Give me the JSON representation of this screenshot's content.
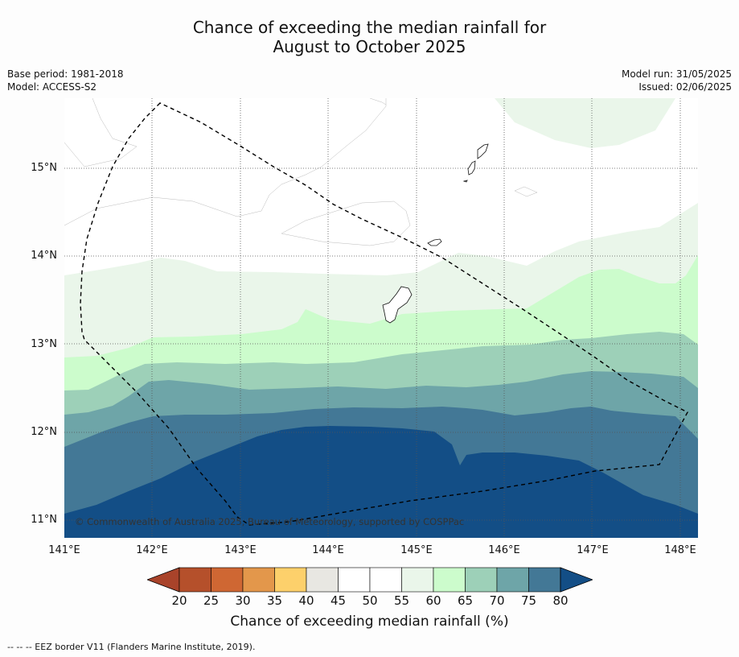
{
  "title_line1": "Chance of exceeding the median rainfall for",
  "title_line2": "August to October 2025",
  "base_period": "Base period: 1981-2018",
  "model": "Model: ACCESS-S2",
  "model_run": "Model run: 31/05/2025",
  "issued": "Issued: 02/06/2025",
  "x_ticks": [
    "141°E",
    "142°E",
    "143°E",
    "144°E",
    "145°E",
    "146°E",
    "147°E",
    "148°E"
  ],
  "y_ticks": [
    "15°N",
    "14°N",
    "13°N",
    "12°N",
    "11°N"
  ],
  "copyright": "© Commonwealth of Australia 2025, Bureau of Meteorology, supported by COSPPac",
  "colorbar": {
    "labels": [
      "20",
      "25",
      "30",
      "35",
      "40",
      "45",
      "50",
      "55",
      "60",
      "65",
      "70",
      "75",
      "80"
    ],
    "colors": [
      "#a9432a",
      "#b5502b",
      "#cf6733",
      "#e3974b",
      "#fdd06b",
      "#e8e7e2",
      "#ffffff",
      "#ffffff",
      "#eaf6ea",
      "#ccfccc",
      "#9dd0b8",
      "#6ea5a8",
      "#437896",
      "#134e86"
    ],
    "title": "Chance of exceeding median rainfall (%)"
  },
  "footnote": "--  --  -- EEZ border V11 (Flanders Marine Institute, 2019)."
}
